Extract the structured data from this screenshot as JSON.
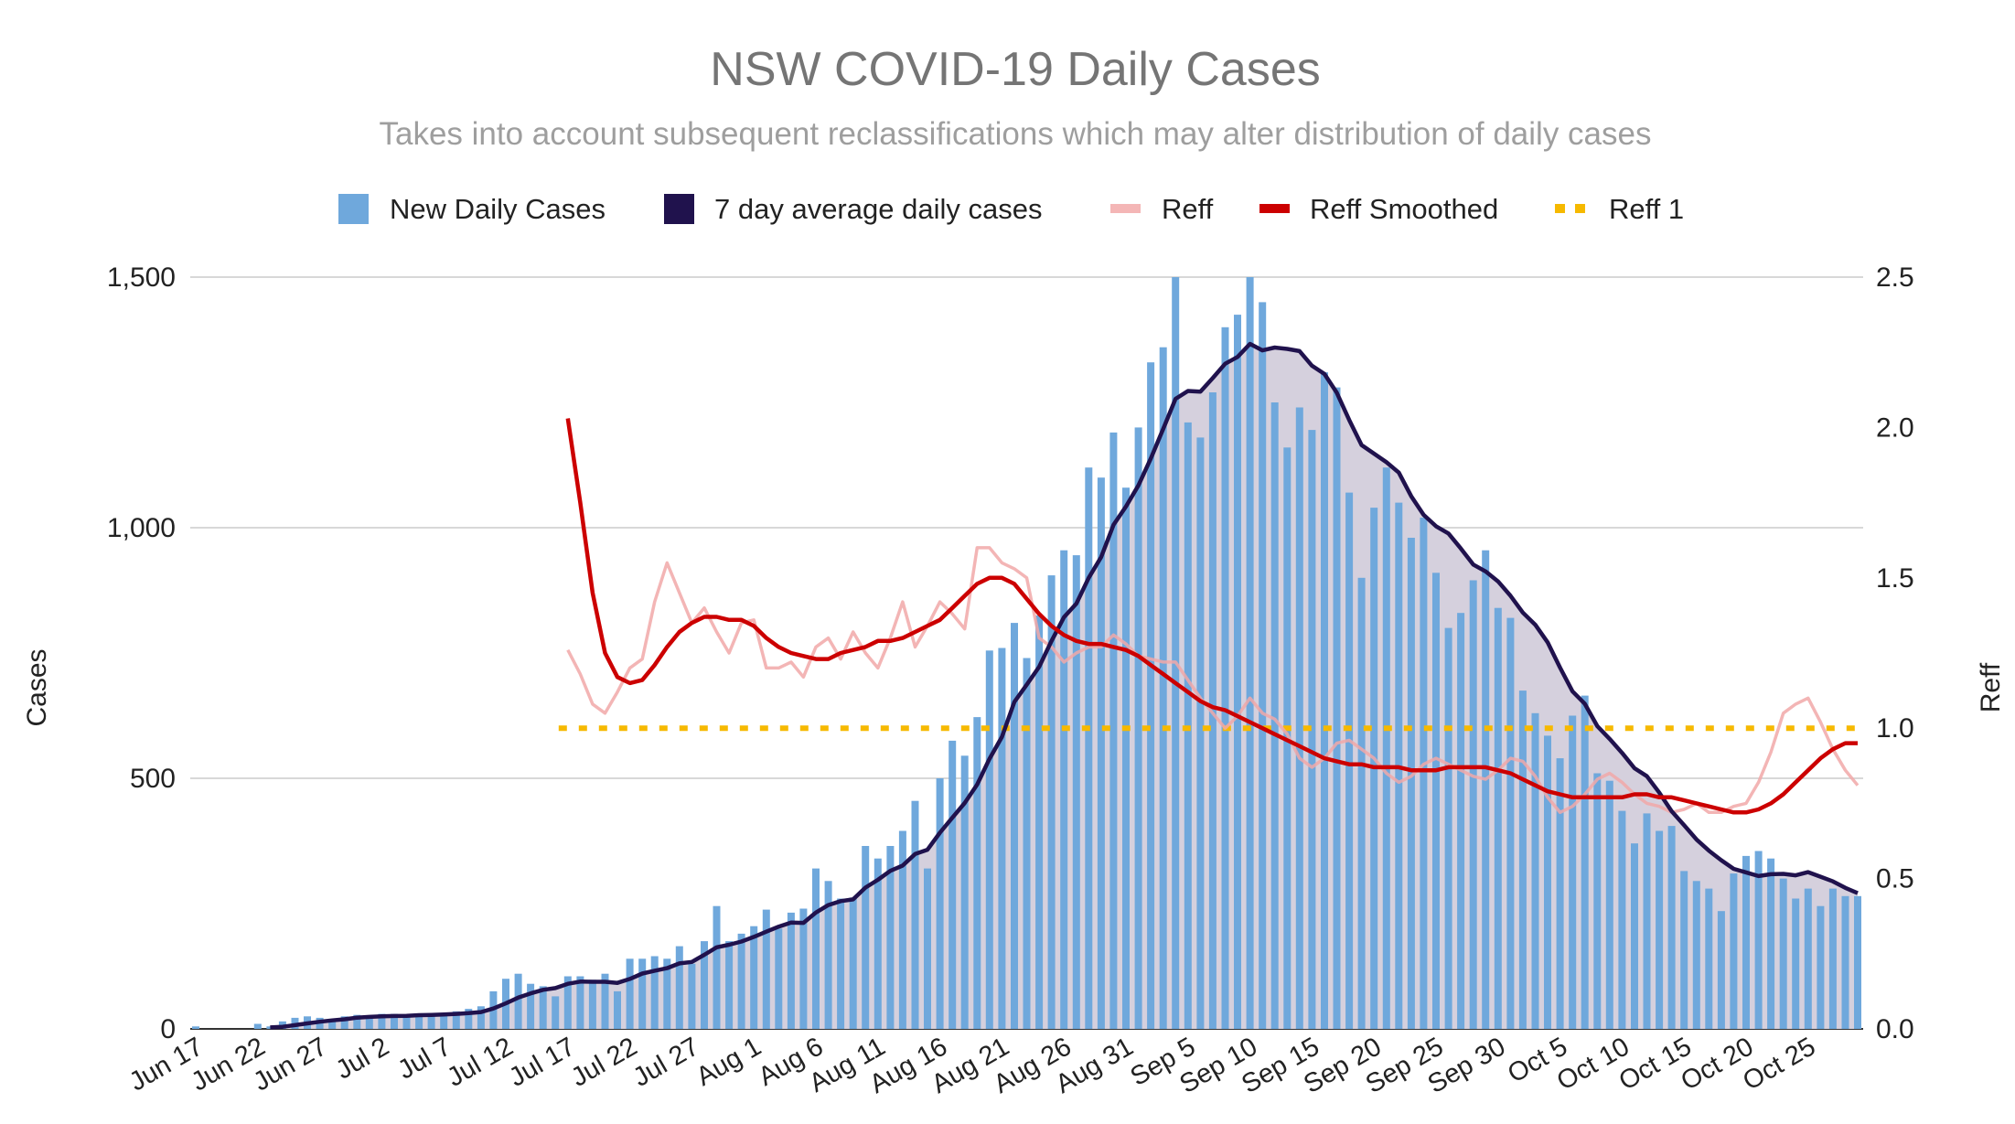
{
  "chart_data": {
    "type": "bar+line",
    "title": "NSW COVID-19 Daily Cases",
    "subtitle": "Takes into account subsequent reclassifications which may alter distribution of daily cases",
    "xlabel": "",
    "ylabel": "Cases",
    "y2label": "Reff",
    "ylim": [
      0,
      1500
    ],
    "y2lim": [
      0,
      2.5
    ],
    "y_ticks": [
      "0",
      "500",
      "1,000",
      "1,500"
    ],
    "y_tick_values": [
      0,
      500,
      1000,
      1500
    ],
    "y2_ticks": [
      "0.0",
      "0.5",
      "1.0",
      "1.5",
      "2.0",
      "2.5"
    ],
    "y2_tick_values": [
      0,
      0.5,
      1.0,
      1.5,
      2.0,
      2.5
    ],
    "grid": true,
    "legend_position": "top",
    "legend": [
      {
        "label": "New Daily Cases",
        "color": "#6fa8dc",
        "marker": "square"
      },
      {
        "label": "7 day average daily cases",
        "color": "#20124d",
        "marker": "square"
      },
      {
        "label": "Reff",
        "color": "#f4b6b6",
        "marker": "line"
      },
      {
        "label": "Reff Smoothed",
        "color": "#cc0000",
        "marker": "line"
      },
      {
        "label": "Reff 1",
        "color": "#f6b900",
        "marker": "dotted"
      }
    ],
    "start_date": "Jun 17",
    "x_tick_labels": [
      "Jun 17",
      "Jun 22",
      "Jun 27",
      "Jul 2",
      "Jul 7",
      "Jul 12",
      "Jul 17",
      "Jul 22",
      "Jul 27",
      "Aug 1",
      "Aug 6",
      "Aug 11",
      "Aug 16",
      "Aug 21",
      "Aug 26",
      "Aug 31",
      "Sep 5",
      "Sep 10",
      "Sep 15",
      "Sep 20",
      "Sep 25",
      "Sep 30",
      "Oct 5",
      "Oct 10",
      "Oct 15",
      "Oct 20",
      "Oct 25"
    ],
    "x_tick_every_days": 5,
    "new_daily_cases": [
      5,
      0,
      0,
      0,
      0,
      10,
      5,
      15,
      22,
      25,
      22,
      20,
      25,
      28,
      25,
      30,
      30,
      25,
      28,
      30,
      32,
      35,
      40,
      45,
      75,
      100,
      110,
      90,
      85,
      65,
      105,
      105,
      98,
      110,
      75,
      140,
      140,
      145,
      140,
      165,
      130,
      175,
      245,
      175,
      190,
      205,
      238,
      200,
      232,
      240,
      320,
      295,
      260,
      262,
      365,
      340,
      365,
      395,
      455,
      320,
      500,
      575,
      545,
      622,
      755,
      760,
      810,
      740,
      825,
      905,
      955,
      945,
      1120,
      1100,
      1190,
      1080,
      1200,
      1330,
      1360,
      1540,
      1210,
      1180,
      1270,
      1400,
      1425,
      1542,
      1450,
      1250,
      1160,
      1240,
      1195,
      1310,
      1280,
      1070,
      900,
      1040,
      1120,
      1050,
      980,
      1020,
      910,
      800,
      830,
      895,
      955,
      840,
      820,
      675,
      630,
      585,
      540,
      625,
      665,
      510,
      495,
      435,
      370,
      430,
      395,
      405,
      315,
      295,
      280,
      235,
      310,
      345,
      355,
      340,
      300,
      260,
      280,
      245,
      280,
      265,
      265
    ],
    "seven_day_average": "trailing 7-day mean of new_daily_cases",
    "reff_start_day_index": 30,
    "reff": [
      1.26,
      1.18,
      1.08,
      1.05,
      1.12,
      1.2,
      1.23,
      1.42,
      1.55,
      1.45,
      1.35,
      1.4,
      1.32,
      1.25,
      1.35,
      1.36,
      1.2,
      1.2,
      1.22,
      1.17,
      1.27,
      1.3,
      1.23,
      1.32,
      1.25,
      1.2,
      1.3,
      1.42,
      1.27,
      1.34,
      1.42,
      1.38,
      1.33,
      1.6,
      1.6,
      1.55,
      1.53,
      1.5,
      1.3,
      1.27,
      1.22,
      1.25,
      1.27,
      1.27,
      1.31,
      1.28,
      1.24,
      1.23,
      1.22,
      1.22,
      1.16,
      1.1,
      1.05,
      1.0,
      1.04,
      1.1,
      1.05,
      1.03,
      0.98,
      0.9,
      0.87,
      0.9,
      0.95,
      0.96,
      0.93,
      0.9,
      0.85,
      0.82,
      0.84,
      0.88,
      0.9,
      0.88,
      0.86,
      0.84,
      0.83,
      0.86,
      0.9,
      0.89,
      0.84,
      0.77,
      0.72,
      0.74,
      0.78,
      0.83,
      0.85,
      0.82,
      0.78,
      0.75,
      0.74,
      0.72,
      0.73,
      0.75,
      0.72,
      0.72,
      0.74,
      0.75,
      0.82,
      0.92,
      1.05,
      1.08,
      1.1,
      1.02,
      0.93,
      0.86,
      0.81
    ],
    "reff_smoothed": [
      2.03,
      1.75,
      1.45,
      1.25,
      1.17,
      1.15,
      1.16,
      1.21,
      1.27,
      1.32,
      1.35,
      1.37,
      1.37,
      1.36,
      1.36,
      1.34,
      1.3,
      1.27,
      1.25,
      1.24,
      1.23,
      1.23,
      1.25,
      1.26,
      1.27,
      1.29,
      1.29,
      1.3,
      1.32,
      1.34,
      1.36,
      1.4,
      1.44,
      1.48,
      1.5,
      1.5,
      1.48,
      1.43,
      1.38,
      1.34,
      1.31,
      1.29,
      1.28,
      1.28,
      1.27,
      1.26,
      1.24,
      1.21,
      1.18,
      1.15,
      1.12,
      1.09,
      1.07,
      1.06,
      1.04,
      1.02,
      1.0,
      0.98,
      0.96,
      0.94,
      0.92,
      0.9,
      0.89,
      0.88,
      0.88,
      0.87,
      0.87,
      0.87,
      0.86,
      0.86,
      0.86,
      0.87,
      0.87,
      0.87,
      0.87,
      0.86,
      0.85,
      0.83,
      0.81,
      0.79,
      0.78,
      0.77,
      0.77,
      0.77,
      0.77,
      0.77,
      0.78,
      0.78,
      0.77,
      0.77,
      0.76,
      0.75,
      0.74,
      0.73,
      0.72,
      0.72,
      0.73,
      0.75,
      0.78,
      0.82,
      0.86,
      0.9,
      0.93,
      0.95,
      0.95
    ],
    "reff_1_value": 1.0
  }
}
